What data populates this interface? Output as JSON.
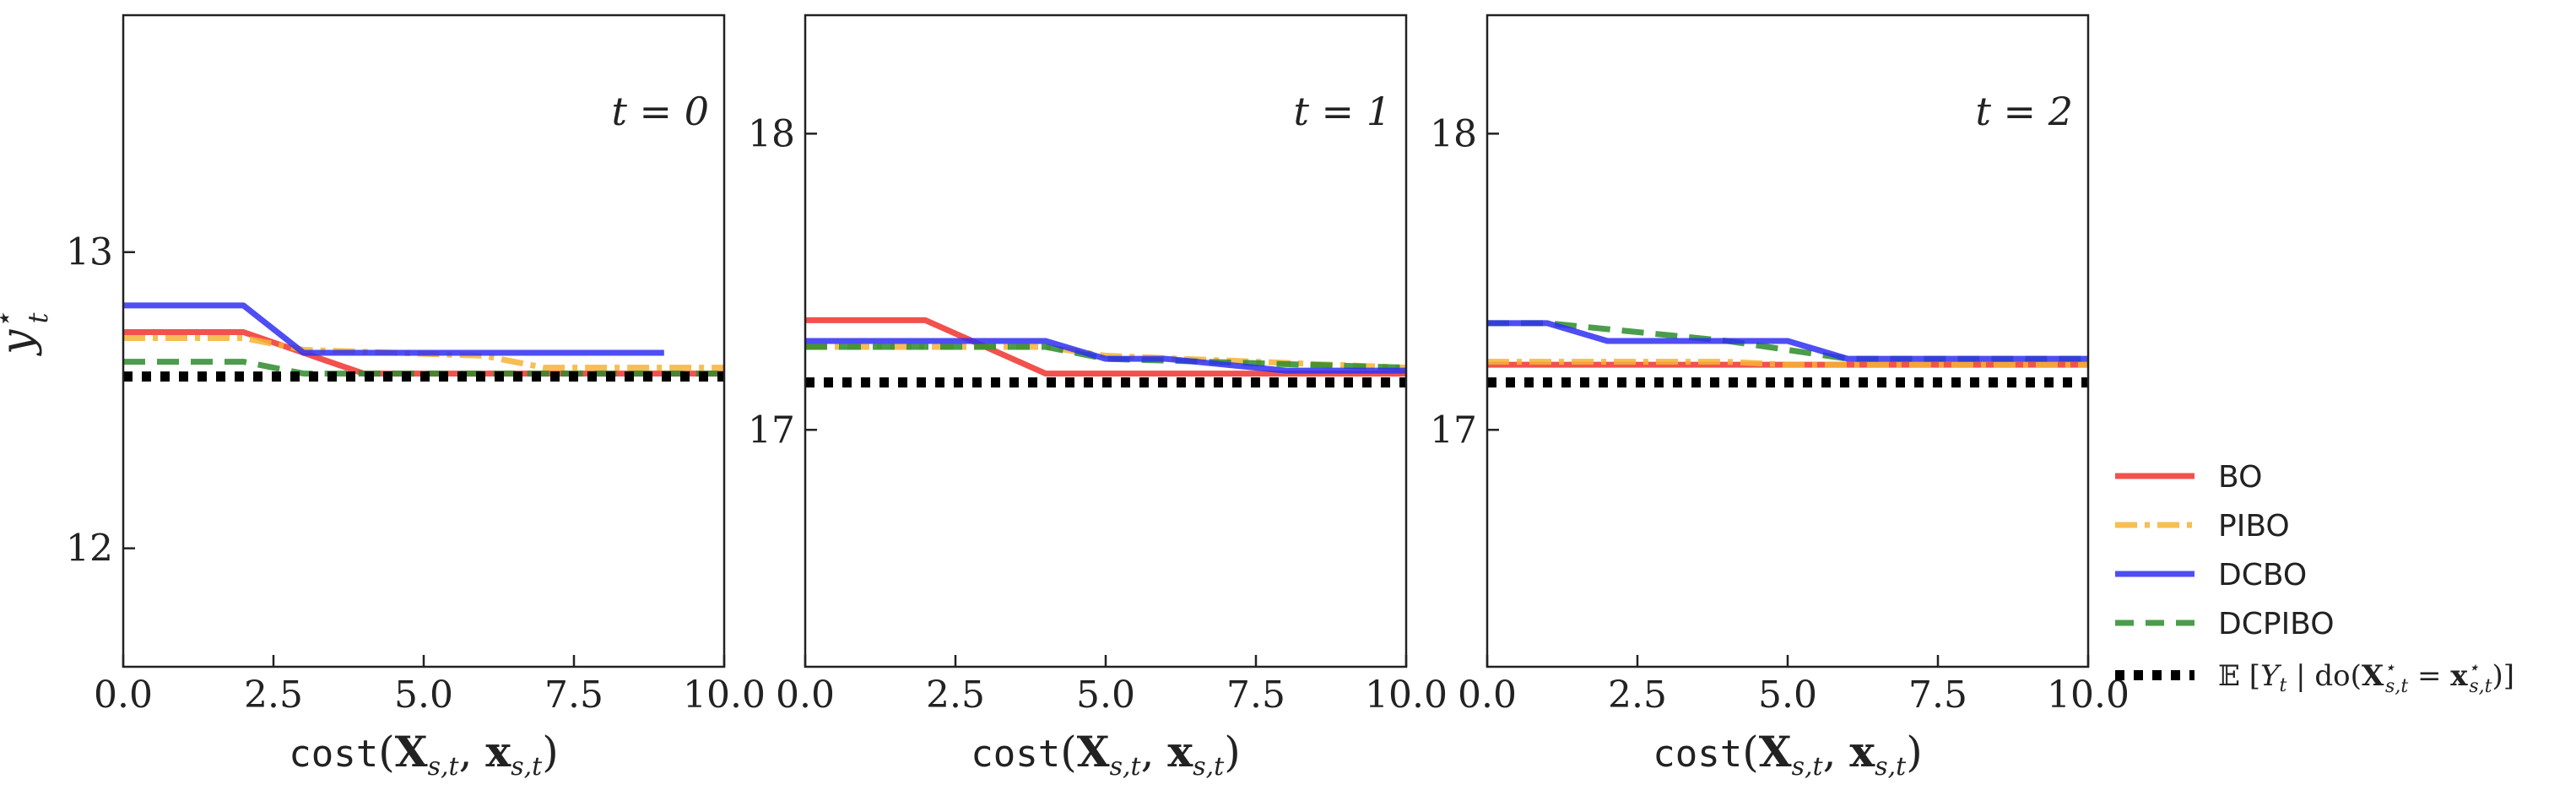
{
  "colors": {
    "BO": "#f0322f",
    "PIBO": "#f5b335",
    "DCBO": "#2f2ff2",
    "DCPIBO": "#2c8c2c",
    "target": "#000000"
  },
  "ylabel": {
    "base": "y",
    "sup": "⋆",
    "sub": "t"
  },
  "xlabel": {
    "func": "cost",
    "open": "(",
    "X": "X",
    "Xsub": "s,t",
    "comma": ", ",
    "x": "x",
    "xsub": "s,t",
    "close": ")"
  },
  "legend": {
    "entries": [
      "BO",
      "PIBO",
      "DCBO",
      "DCPIBO"
    ],
    "target_label": {
      "E": "𝔼",
      "lbr": "[",
      "Y": "Y",
      "Ysub": "t",
      "bar": " | do(",
      "X": "X",
      "Xsup": "⋆",
      "Xsub": "s,t",
      "eq": " = ",
      "x": "x",
      "xsup": "⋆",
      "xsub": "s,t",
      "rbr": ")]"
    }
  },
  "chart_data": [
    {
      "type": "line",
      "panel_label": "t = 0",
      "xlim": [
        0,
        10
      ],
      "ylim": [
        11.6,
        13.8
      ],
      "xticks": [
        "0.0",
        "2.5",
        "5.0",
        "7.5",
        "10.0"
      ],
      "yticks": [
        12,
        13
      ],
      "series": [
        {
          "name": "BO",
          "x": [
            0,
            2,
            3,
            4,
            10
          ],
          "y": [
            12.73,
            12.73,
            12.66,
            12.59,
            12.59
          ]
        },
        {
          "name": "PIBO",
          "x": [
            0,
            2,
            3,
            6,
            7,
            10
          ],
          "y": [
            12.71,
            12.71,
            12.67,
            12.65,
            12.61,
            12.61
          ]
        },
        {
          "name": "DCBO",
          "x": [
            0,
            2,
            3,
            9
          ],
          "y": [
            12.82,
            12.82,
            12.66,
            12.66
          ]
        },
        {
          "name": "DCPIBO",
          "x": [
            0,
            2,
            3,
            10
          ],
          "y": [
            12.63,
            12.63,
            12.59,
            12.59
          ]
        },
        {
          "name": "target",
          "x": [
            0,
            10
          ],
          "y": [
            12.58,
            12.58
          ]
        }
      ]
    },
    {
      "type": "line",
      "panel_label": "t = 1",
      "xlim": [
        0,
        10
      ],
      "ylim": [
        16.2,
        18.4
      ],
      "xticks": [
        "0.0",
        "2.5",
        "5.0",
        "7.5",
        "10.0"
      ],
      "yticks": [
        17,
        18
      ],
      "series": [
        {
          "name": "BO",
          "x": [
            0,
            2,
            4,
            10
          ],
          "y": [
            17.37,
            17.37,
            17.19,
            17.19
          ]
        },
        {
          "name": "PIBO",
          "x": [
            0,
            3,
            4,
            5,
            10
          ],
          "y": [
            17.28,
            17.28,
            17.28,
            17.25,
            17.21
          ]
        },
        {
          "name": "DCBO",
          "x": [
            0,
            4,
            5,
            6,
            8,
            10
          ],
          "y": [
            17.3,
            17.3,
            17.24,
            17.24,
            17.2,
            17.2
          ]
        },
        {
          "name": "DCPIBO",
          "x": [
            0,
            4,
            5,
            10
          ],
          "y": [
            17.28,
            17.28,
            17.24,
            17.21
          ]
        },
        {
          "name": "target",
          "x": [
            0,
            10
          ],
          "y": [
            17.16,
            17.16
          ]
        }
      ]
    },
    {
      "type": "line",
      "panel_label": "t = 2",
      "xlim": [
        0,
        10
      ],
      "ylim": [
        16.2,
        18.4
      ],
      "xticks": [
        "0.0",
        "2.5",
        "5.0",
        "7.5",
        "10.0"
      ],
      "yticks": [
        17,
        18
      ],
      "series": [
        {
          "name": "BO",
          "x": [
            0,
            10
          ],
          "y": [
            17.22,
            17.22
          ]
        },
        {
          "name": "PIBO",
          "x": [
            0,
            4,
            5,
            10
          ],
          "y": [
            17.23,
            17.23,
            17.22,
            17.22
          ]
        },
        {
          "name": "DCBO",
          "x": [
            0,
            1,
            2,
            5,
            6,
            10
          ],
          "y": [
            17.36,
            17.36,
            17.3,
            17.3,
            17.24,
            17.24
          ]
        },
        {
          "name": "DCPIBO",
          "x": [
            0,
            1,
            4,
            6,
            10
          ],
          "y": [
            17.36,
            17.36,
            17.3,
            17.24,
            17.24
          ]
        },
        {
          "name": "target",
          "x": [
            0,
            10
          ],
          "y": [
            17.16,
            17.16
          ]
        }
      ]
    }
  ]
}
